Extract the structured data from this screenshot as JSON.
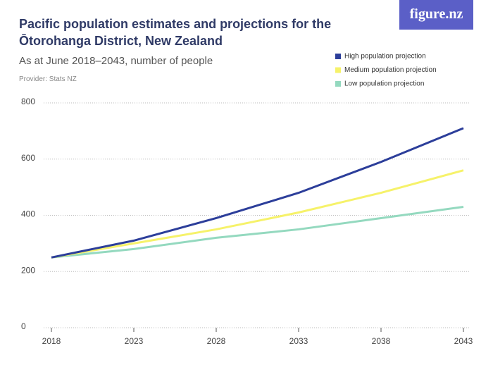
{
  "chart_data": {
    "type": "line",
    "title": "Pacific population estimates and projections for the Ōtorohanga District, New Zealand",
    "subtitle": "As at June 2018–2043, number of people",
    "provider": "Provider: Stats NZ",
    "logo": "figure.nz",
    "x": [
      2018,
      2023,
      2028,
      2033,
      2038,
      2043
    ],
    "xlim": [
      2018,
      2043
    ],
    "xticks": [
      2018,
      2023,
      2028,
      2033,
      2038,
      2043
    ],
    "ylim": [
      0,
      800
    ],
    "yticks": [
      0,
      200,
      400,
      600,
      800
    ],
    "grid": true,
    "series": [
      {
        "name": "High population projection",
        "color": "#2c3e9a",
        "values": [
          250,
          310,
          390,
          480,
          590,
          710
        ]
      },
      {
        "name": "Medium population projection",
        "color": "#f6f26a",
        "values": [
          250,
          300,
          350,
          410,
          480,
          560
        ]
      },
      {
        "name": "Low population projection",
        "color": "#94d9bf",
        "values": [
          250,
          280,
          320,
          350,
          390,
          430
        ]
      }
    ]
  }
}
